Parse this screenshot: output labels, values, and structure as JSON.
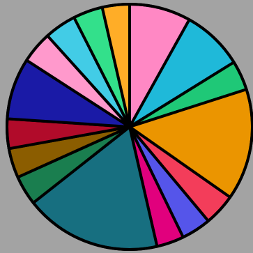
{
  "page": {
    "background_color": "#a3a3a3"
  },
  "chart_data": {
    "type": "pie",
    "title": "",
    "start": "12 o'clock",
    "direction": "clockwise",
    "unit": "degrees",
    "slices": [
      {
        "value": 27,
        "color": "#ff88c4"
      },
      {
        "value": 27,
        "color": "#1fb9d9"
      },
      {
        "value": 13,
        "color": "#1fc877"
      },
      {
        "value": 49,
        "color": "#eb9500"
      },
      {
        "value": 14,
        "color": "#f33d5a"
      },
      {
        "value": 13,
        "color": "#5555ea"
      },
      {
        "value": 12,
        "color": "#e1007d"
      },
      {
        "value": 60,
        "color": "#176f80"
      },
      {
        "value": 13,
        "color": "#1a7e4f"
      },
      {
        "value": 13,
        "color": "#8b5d00"
      },
      {
        "value": 13,
        "color": "#b10b2a"
      },
      {
        "value": 27,
        "color": "#1a1aa6"
      },
      {
        "value": 14,
        "color": "#ff99cc"
      },
      {
        "value": 14,
        "color": "#42cce6"
      },
      {
        "value": 13,
        "color": "#33e08b"
      },
      {
        "value": 12,
        "color": "#ffad27"
      }
    ]
  }
}
